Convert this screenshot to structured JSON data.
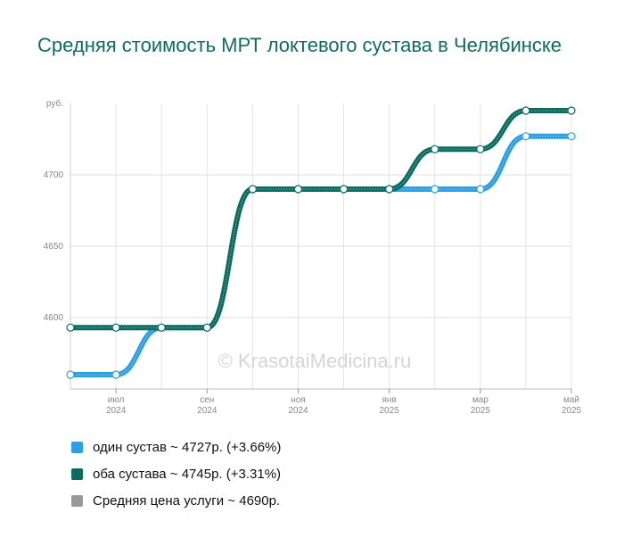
{
  "chart_data": {
    "type": "line",
    "title": "Средняя стоимость МРТ локтевого сустава в Челябинске",
    "ylabel": "руб.",
    "ylim": [
      4550,
      4750
    ],
    "y_ticks": [
      4600,
      4650,
      4700
    ],
    "x_count": 12,
    "x_ticks": [
      {
        "index": 1,
        "month": "июл",
        "year": "2024"
      },
      {
        "index": 3,
        "month": "сен",
        "year": "2024"
      },
      {
        "index": 5,
        "month": "ноя",
        "year": "2024"
      },
      {
        "index": 7,
        "month": "янв",
        "year": "2025"
      },
      {
        "index": 9,
        "month": "мар",
        "year": "2025"
      },
      {
        "index": 11,
        "month": "май",
        "year": "2025"
      }
    ],
    "grid": true,
    "legend_position": "bottom",
    "watermark": "© KrasotaiMedicina.ru",
    "series": [
      {
        "name": "один сустав",
        "color": "#2c9fe0",
        "values": [
          4560,
          4560,
          4593,
          4593,
          4690,
          4690,
          4690,
          4690,
          4690,
          4690,
          4727,
          4727
        ]
      },
      {
        "name": "оба сустава",
        "color": "#0b6b5f",
        "values": [
          4593,
          4593,
          4593,
          4593,
          4690,
          4690,
          4690,
          4690,
          4718,
          4718,
          4745,
          4745
        ]
      },
      {
        "name": "Средняя цена услуги",
        "color": "#999999",
        "values": [
          null,
          null,
          null,
          null,
          4690,
          4690,
          4690,
          4690,
          null,
          null,
          null,
          null
        ]
      }
    ],
    "legend": [
      {
        "text": "один сустав ~ 4727р. (+3.66%)",
        "color": "#2c9fe0"
      },
      {
        "text": "оба сустава ~ 4745р. (+3.31%)",
        "color": "#0b6b5f"
      },
      {
        "text": "Средняя цена услуги ~ 4690р.",
        "color": "#999999"
      }
    ]
  }
}
